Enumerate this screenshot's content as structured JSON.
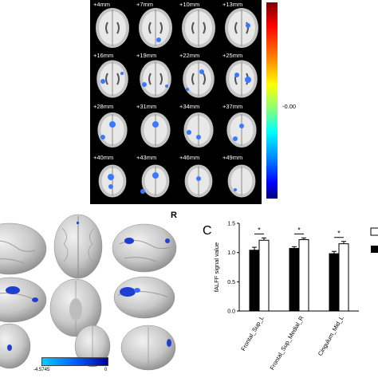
{
  "panel_a": {
    "slices": [
      "+4mm",
      "+7mm",
      "+10mm",
      "+13mm",
      "+16mm",
      "+19mm",
      "+22mm",
      "+25mm",
      "+28mm",
      "+31mm",
      "+34mm",
      "+37mm",
      "+40mm",
      "+43mm",
      "+46mm",
      "+49mm"
    ],
    "colorbar_label": "-0.00"
  },
  "panel_b": {
    "side_label": "R",
    "colorbar_min": "-4.5745",
    "colorbar_max": "0"
  },
  "panel_c": {
    "letter": "C"
  },
  "chart_data": {
    "type": "bar",
    "categories": [
      "Frontal_Sup_L",
      "Frontal_Sup_Medial_R",
      "Cingulum_Mid_L"
    ],
    "ylabel": "fALFF signal value",
    "ylim": [
      0,
      1.5
    ],
    "yticks": [
      "0.0",
      "0.5",
      "1.0",
      "1.5"
    ],
    "series": [
      {
        "values": [
          1.04,
          1.07,
          0.98
        ],
        "errors": [
          0.05,
          0.03,
          0.04
        ],
        "color": "#000000"
      },
      {
        "values": [
          1.21,
          1.22,
          1.15
        ],
        "errors": [
          0.04,
          0.03,
          0.04
        ],
        "color": "#ffffff"
      }
    ],
    "significance": [
      "*",
      "*",
      "*"
    ]
  }
}
